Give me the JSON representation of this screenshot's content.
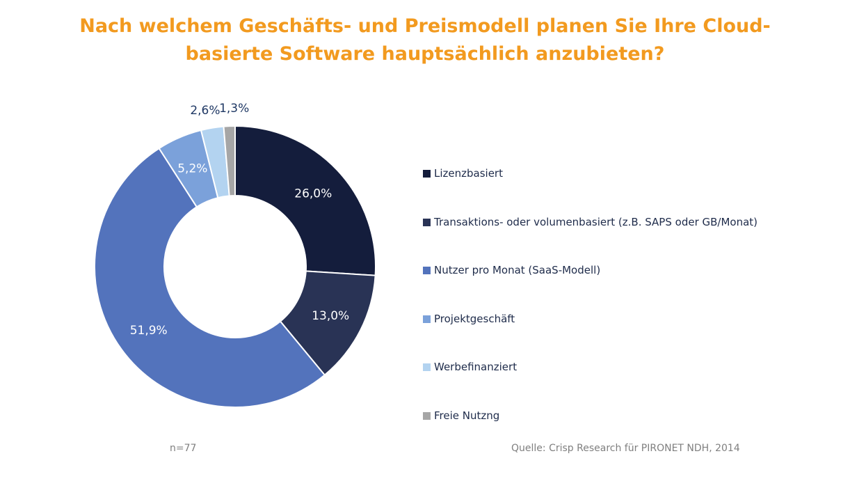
{
  "title": {
    "line1": "Nach welchem Geschäfts- und Preismodell planen Sie Ihre Cloud-",
    "line2": "basierte Software hauptsächlich anzubieten?"
  },
  "chart_data": {
    "type": "pie",
    "style": "donut",
    "categories": [
      "Lizenzbasiert",
      "Transaktions- oder volumenbasiert (z.B. SAPS oder GB/Monat)",
      "Nutzer pro Monat (SaaS-Modell)",
      "Projektgeschäft",
      "Werbefinanziert",
      "Freie Nutzng"
    ],
    "values": [
      26.0,
      13.0,
      51.9,
      5.2,
      2.6,
      1.3
    ],
    "labels": [
      "26,0%",
      "13,0%",
      "51,9%",
      "5,2%",
      "2,6%",
      "1,3%"
    ],
    "colors": [
      "#141D3C",
      "#293355",
      "#5373BC",
      "#7BA1DA",
      "#B3D3F0",
      "#A6A6A6"
    ],
    "legend_position": "right"
  },
  "footer": {
    "n": "n=77",
    "source": "Quelle: Crisp Research für PIRONET NDH, 2014"
  }
}
